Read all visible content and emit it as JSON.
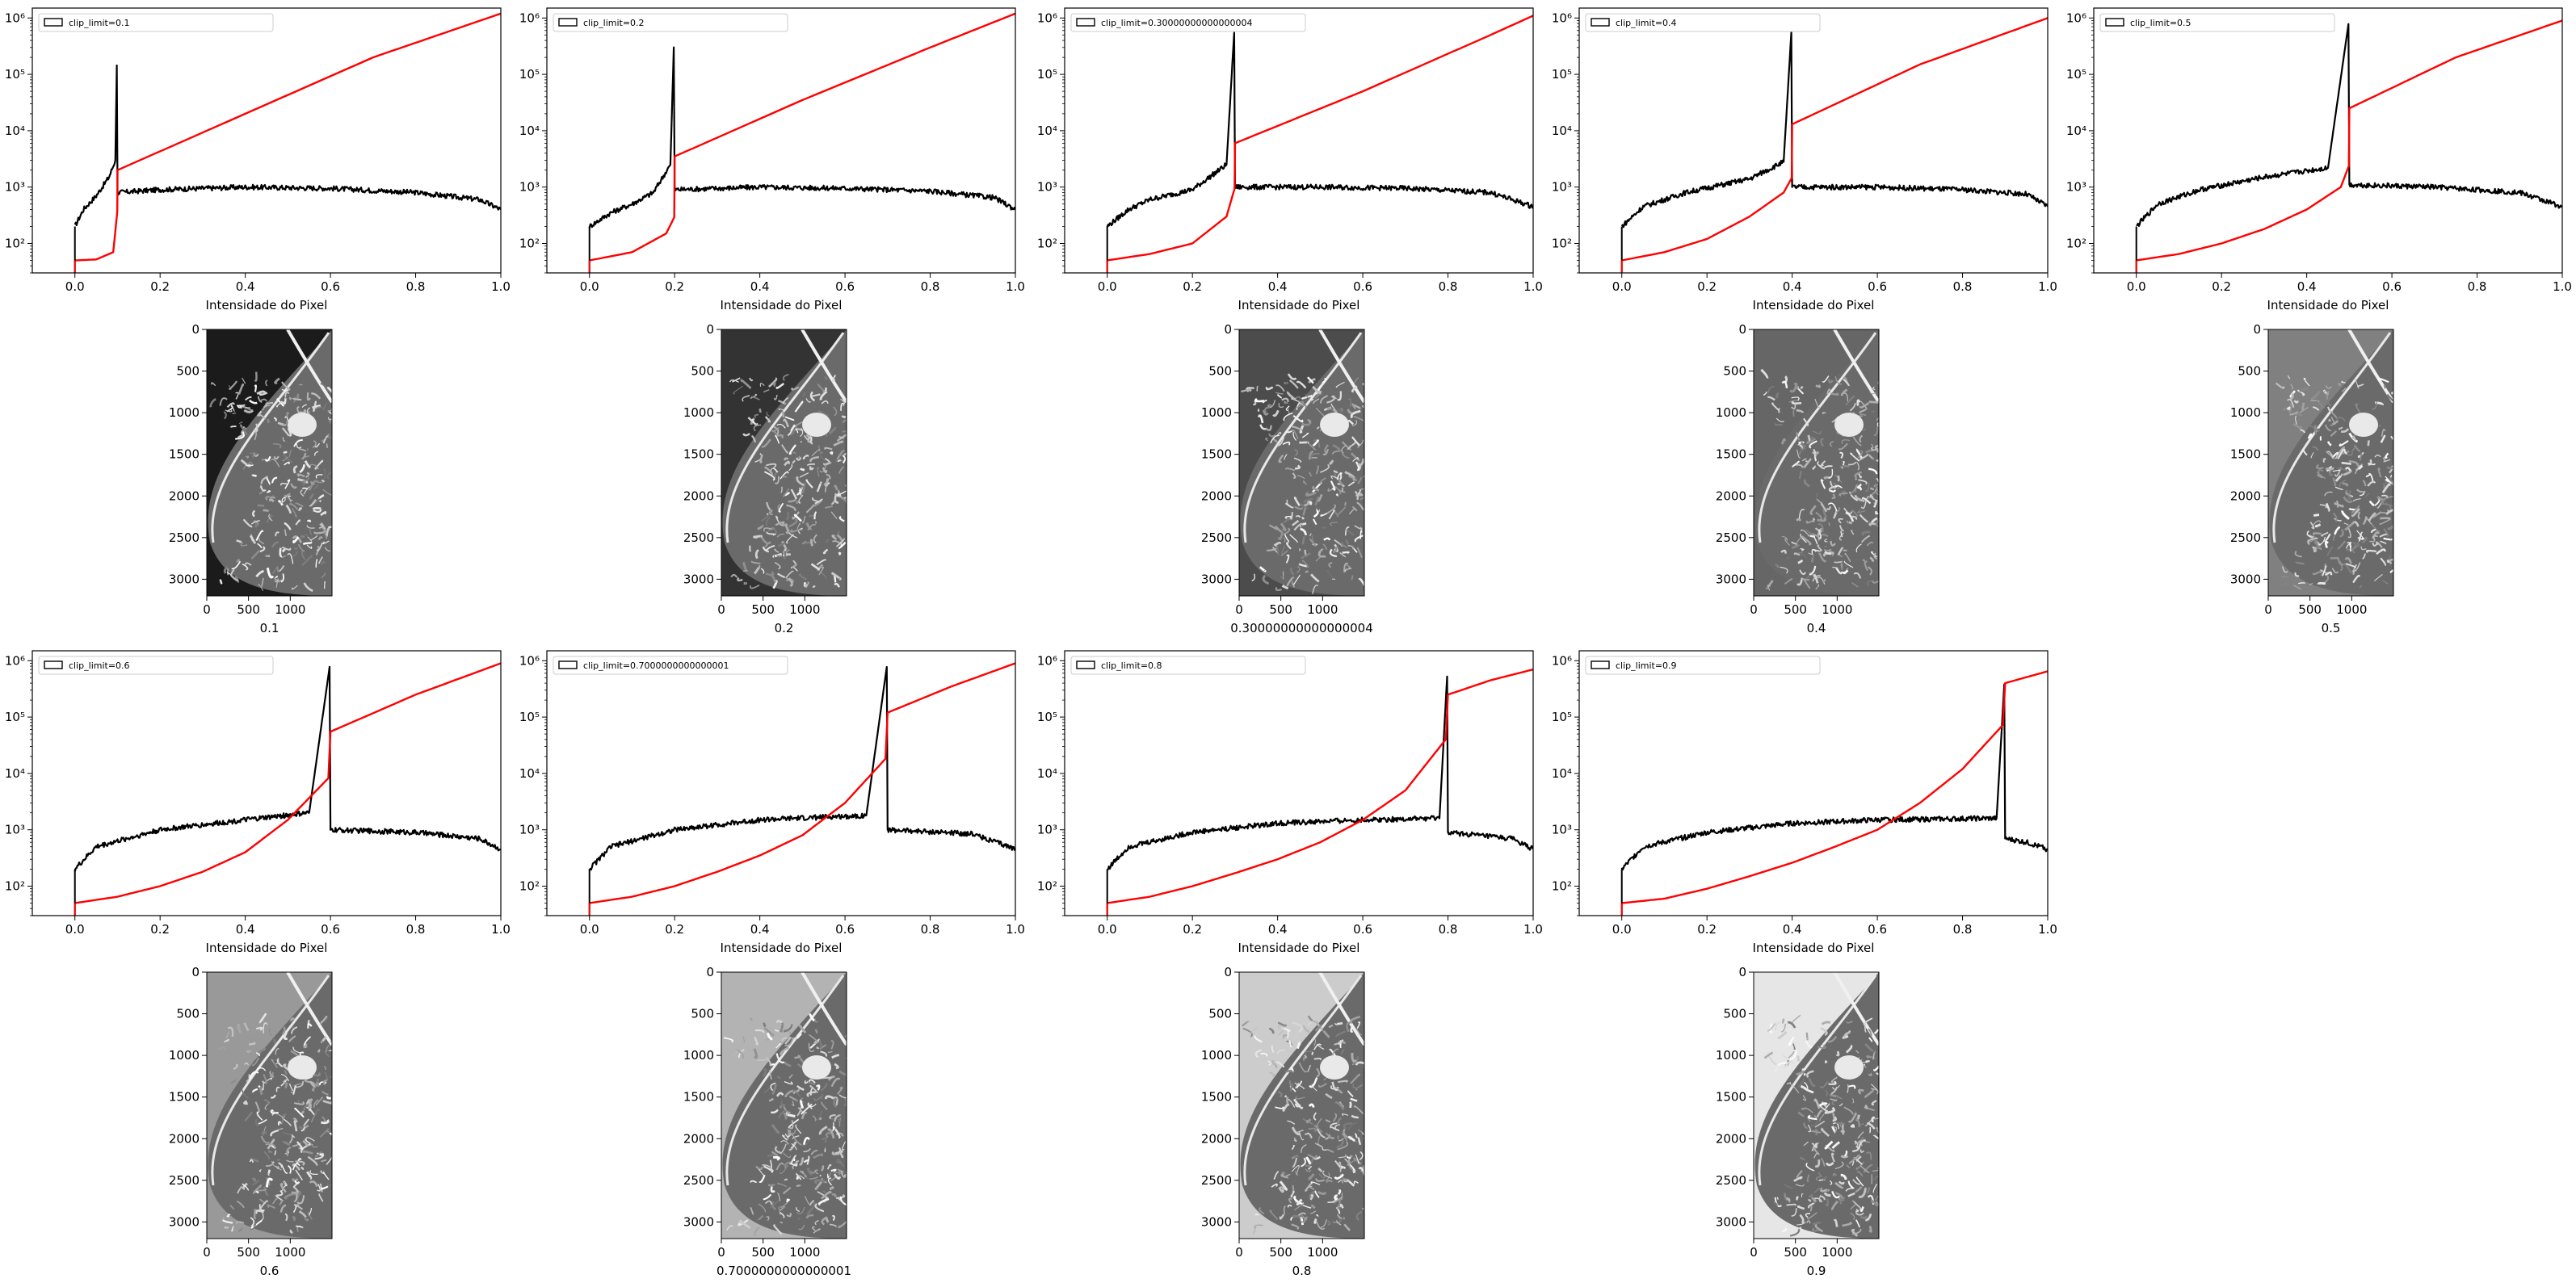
{
  "chart_data": [
    {
      "type": "line",
      "panel": 1,
      "legend": "clip_limit=0.1",
      "xlabel": "Intensidade do Pixel",
      "yscale": "log",
      "xlim": [
        -0.1,
        1.0
      ],
      "ylim": [
        30,
        1500000
      ],
      "xticks": [
        "0.0",
        "0.2",
        "0.4",
        "0.6",
        "0.8",
        "1.0"
      ],
      "yticks": [
        "10²",
        "10³",
        "10⁴",
        "10⁵",
        "10⁶"
      ],
      "clip": 0.1,
      "series": [
        {
          "color": "#000000",
          "x": [
            0,
            0.02,
            0.05,
            0.08,
            0.095,
            0.1,
            0.1,
            0.2,
            0.4,
            0.6,
            0.8,
            0.95,
            1.0
          ],
          "y": [
            200,
            400,
            700,
            1500,
            3000,
            1000000,
            800,
            900,
            1000,
            950,
            800,
            600,
            400
          ]
        },
        {
          "color": "#ff0000",
          "x": [
            0,
            0.05,
            0.09,
            0.1,
            0.1,
            0.4,
            0.7,
            1.0
          ],
          "y": [
            50,
            52,
            70,
            400,
            2000,
            20000,
            200000,
            1200000
          ]
        }
      ]
    },
    {
      "type": "line",
      "panel": 2,
      "legend": "clip_limit=0.2",
      "xlabel": "Intensidade do Pixel",
      "yscale": "log",
      "xlim": [
        -0.1,
        1.0
      ],
      "ylim": [
        30,
        1500000
      ],
      "xticks": [
        "0.0",
        "0.2",
        "0.4",
        "0.6",
        "0.8",
        "1.0"
      ],
      "yticks": [
        "10²",
        "10³",
        "10⁴",
        "10⁵",
        "10⁶"
      ],
      "clip": 0.2,
      "series": [
        {
          "color": "#000000",
          "x": [
            0,
            0.05,
            0.1,
            0.15,
            0.19,
            0.2,
            0.2,
            0.4,
            0.6,
            0.8,
            0.95,
            1.0
          ],
          "y": [
            200,
            350,
            500,
            800,
            2500,
            1000000,
            900,
            1000,
            950,
            850,
            650,
            400
          ]
        },
        {
          "color": "#ff0000",
          "x": [
            0,
            0.1,
            0.18,
            0.2,
            0.2,
            0.5,
            0.8,
            1.0
          ],
          "y": [
            50,
            70,
            150,
            300,
            3500,
            35000,
            300000,
            1200000
          ]
        }
      ]
    },
    {
      "type": "line",
      "panel": 3,
      "legend": "clip_limit=0.30000000000000004",
      "xlabel": "Intensidade do Pixel",
      "yscale": "log",
      "xlim": [
        -0.1,
        1.0
      ],
      "ylim": [
        30,
        1500000
      ],
      "xticks": [
        "0.0",
        "0.2",
        "0.4",
        "0.6",
        "0.8",
        "1.0"
      ],
      "yticks": [
        "10²",
        "10³",
        "10⁴",
        "10⁵",
        "10⁶"
      ],
      "clip": 0.30000000000000004,
      "series": [
        {
          "color": "#000000",
          "x": [
            0,
            0.05,
            0.1,
            0.2,
            0.28,
            0.3,
            0.3,
            0.5,
            0.7,
            0.9,
            1.0
          ],
          "y": [
            200,
            400,
            600,
            900,
            2500,
            1000000,
            1000,
            1000,
            950,
            800,
            450
          ]
        },
        {
          "color": "#ff0000",
          "x": [
            0,
            0.1,
            0.2,
            0.28,
            0.3,
            0.3,
            0.6,
            0.9,
            1.0
          ],
          "y": [
            50,
            65,
            100,
            300,
            1000,
            6000,
            50000,
            500000,
            1100000
          ]
        }
      ]
    },
    {
      "type": "line",
      "panel": 4,
      "legend": "clip_limit=0.4",
      "xlabel": "Intensidade do Pixel",
      "yscale": "log",
      "xlim": [
        -0.1,
        1.0
      ],
      "ylim": [
        30,
        1500000
      ],
      "xticks": [
        "0.0",
        "0.2",
        "0.4",
        "0.6",
        "0.8",
        "1.0"
      ],
      "yticks": [
        "10²",
        "10³",
        "10⁴",
        "10⁵",
        "10⁶"
      ],
      "clip": 0.4,
      "series": [
        {
          "color": "#000000",
          "x": [
            0,
            0.05,
            0.15,
            0.3,
            0.38,
            0.4,
            0.4,
            0.6,
            0.8,
            0.95,
            1.0
          ],
          "y": [
            200,
            450,
            800,
            1400,
            2800,
            1000000,
            1000,
            1000,
            900,
            750,
            450
          ]
        },
        {
          "color": "#ff0000",
          "x": [
            0,
            0.1,
            0.2,
            0.3,
            0.38,
            0.4,
            0.4,
            0.7,
            1.0
          ],
          "y": [
            50,
            70,
            120,
            300,
            800,
            1500,
            13000,
            150000,
            1000000
          ]
        }
      ]
    },
    {
      "type": "line",
      "panel": 5,
      "legend": "clip_limit=0.5",
      "xlabel": "Intensidade do Pixel",
      "yscale": "log",
      "xlim": [
        -0.1,
        1.0
      ],
      "ylim": [
        30,
        1500000
      ],
      "xticks": [
        "0.0",
        "0.2",
        "0.4",
        "0.6",
        "0.8",
        "1.0"
      ],
      "yticks": [
        "10²",
        "10³",
        "10⁴",
        "10⁵",
        "10⁶"
      ],
      "clip": 0.5,
      "series": [
        {
          "color": "#000000",
          "x": [
            0,
            0.05,
            0.15,
            0.3,
            0.45,
            0.5,
            0.5,
            0.7,
            0.9,
            1.0
          ],
          "y": [
            200,
            500,
            900,
            1500,
            2200,
            1000000,
            1100,
            1000,
            800,
            450
          ]
        },
        {
          "color": "#ff0000",
          "x": [
            0,
            0.1,
            0.2,
            0.3,
            0.4,
            0.48,
            0.5,
            0.5,
            0.75,
            1.0
          ],
          "y": [
            50,
            65,
            100,
            180,
            400,
            1000,
            2500,
            25000,
            200000,
            900000
          ]
        }
      ]
    },
    {
      "type": "line",
      "panel": 6,
      "legend": "clip_limit=0.6",
      "xlabel": "Intensidade do Pixel",
      "yscale": "log",
      "xlim": [
        -0.1,
        1.0
      ],
      "ylim": [
        30,
        1500000
      ],
      "xticks": [
        "0.0",
        "0.2",
        "0.4",
        "0.6",
        "0.8",
        "1.0"
      ],
      "yticks": [
        "10²",
        "10³",
        "10⁴",
        "10⁵",
        "10⁶"
      ],
      "clip": 0.6,
      "series": [
        {
          "color": "#000000",
          "x": [
            0,
            0.05,
            0.2,
            0.4,
            0.55,
            0.6,
            0.6,
            0.8,
            0.95,
            1.0
          ],
          "y": [
            200,
            500,
            1000,
            1500,
            2000,
            1000000,
            1000,
            900,
            700,
            450
          ]
        },
        {
          "color": "#ff0000",
          "x": [
            0,
            0.1,
            0.2,
            0.3,
            0.4,
            0.5,
            0.6,
            0.6,
            0.8,
            1.0
          ],
          "y": [
            50,
            65,
            100,
            180,
            400,
            1500,
            9000,
            55000,
            250000,
            900000
          ]
        }
      ]
    },
    {
      "type": "line",
      "panel": 7,
      "legend": "clip_limit=0.7000000000000001",
      "xlabel": "Intensidade do Pixel",
      "yscale": "log",
      "xlim": [
        -0.1,
        1.0
      ],
      "ylim": [
        30,
        1500000
      ],
      "xticks": [
        "0.0",
        "0.2",
        "0.4",
        "0.6",
        "0.8",
        "1.0"
      ],
      "yticks": [
        "10²",
        "10³",
        "10⁴",
        "10⁵",
        "10⁶"
      ],
      "clip": 0.7000000000000001,
      "series": [
        {
          "color": "#000000",
          "x": [
            0,
            0.05,
            0.2,
            0.4,
            0.65,
            0.7,
            0.7,
            0.9,
            1.0
          ],
          "y": [
            200,
            500,
            1000,
            1500,
            1800,
            1000000,
            1000,
            850,
            450
          ]
        },
        {
          "color": "#ff0000",
          "x": [
            0,
            0.1,
            0.2,
            0.3,
            0.4,
            0.5,
            0.6,
            0.7,
            0.7,
            0.85,
            1.0
          ],
          "y": [
            50,
            65,
            100,
            180,
            350,
            800,
            3000,
            20000,
            120000,
            350000,
            900000
          ]
        }
      ]
    },
    {
      "type": "line",
      "panel": 8,
      "legend": "clip_limit=0.8",
      "xlabel": "Intensidade do Pixel",
      "yscale": "log",
      "xlim": [
        -0.1,
        1.0
      ],
      "ylim": [
        30,
        1500000
      ],
      "xticks": [
        "0.0",
        "0.2",
        "0.4",
        "0.6",
        "0.8",
        "1.0"
      ],
      "yticks": [
        "10²",
        "10³",
        "10⁴",
        "10⁵",
        "10⁶"
      ],
      "clip": 0.8,
      "series": [
        {
          "color": "#000000",
          "x": [
            0,
            0.05,
            0.2,
            0.4,
            0.6,
            0.78,
            0.8,
            0.8,
            0.95,
            1.0
          ],
          "y": [
            200,
            500,
            900,
            1300,
            1500,
            1600,
            1000000,
            900,
            700,
            450
          ]
        },
        {
          "color": "#ff0000",
          "x": [
            0,
            0.1,
            0.2,
            0.3,
            0.4,
            0.5,
            0.6,
            0.7,
            0.8,
            0.8,
            0.9,
            1.0
          ],
          "y": [
            50,
            65,
            100,
            170,
            300,
            600,
            1500,
            5000,
            45000,
            250000,
            450000,
            700000
          ]
        }
      ]
    },
    {
      "type": "line",
      "panel": 9,
      "legend": "clip_limit=0.9",
      "xlabel": "Intensidade do Pixel",
      "yscale": "log",
      "xlim": [
        -0.1,
        1.0
      ],
      "ylim": [
        30,
        1500000
      ],
      "xticks": [
        "0.0",
        "0.2",
        "0.4",
        "0.6",
        "0.8",
        "1.0"
      ],
      "yticks": [
        "10²",
        "10³",
        "10⁴",
        "10⁵",
        "10⁶"
      ],
      "clip": 0.9,
      "series": [
        {
          "color": "#000000",
          "x": [
            0,
            0.05,
            0.2,
            0.4,
            0.6,
            0.88,
            0.9,
            0.9,
            0.95,
            1.0
          ],
          "y": [
            200,
            500,
            900,
            1300,
            1500,
            1600,
            700000,
            700,
            600,
            450
          ]
        },
        {
          "color": "#ff0000",
          "x": [
            0,
            0.1,
            0.2,
            0.3,
            0.4,
            0.5,
            0.6,
            0.7,
            0.8,
            0.9,
            0.9,
            1.0
          ],
          "y": [
            50,
            60,
            90,
            150,
            260,
            500,
            1000,
            3000,
            12000,
            80000,
            400000,
            650000
          ]
        }
      ]
    }
  ],
  "images": [
    {
      "caption": "0.1",
      "yticks": [
        "0",
        "500",
        "1000",
        "1500",
        "2000",
        "2500",
        "3000"
      ],
      "xticks": [
        "0",
        "500",
        "1000"
      ],
      "bg": "#1b1b1b"
    },
    {
      "caption": "0.2",
      "yticks": [
        "0",
        "500",
        "1000",
        "1500",
        "2000",
        "2500",
        "3000"
      ],
      "xticks": [
        "0",
        "500",
        "1000"
      ],
      "bg": "#333333"
    },
    {
      "caption": "0.30000000000000004",
      "yticks": [
        "0",
        "500",
        "1000",
        "1500",
        "2000",
        "2500",
        "3000"
      ],
      "xticks": [
        "0",
        "500",
        "1000"
      ],
      "bg": "#4c4c4c"
    },
    {
      "caption": "0.4",
      "yticks": [
        "0",
        "500",
        "1000",
        "1500",
        "2000",
        "2500",
        "3000"
      ],
      "xticks": [
        "0",
        "500",
        "1000"
      ],
      "bg": "#666666"
    },
    {
      "caption": "0.5",
      "yticks": [
        "0",
        "500",
        "1000",
        "1500",
        "2000",
        "2500",
        "3000"
      ],
      "xticks": [
        "0",
        "500",
        "1000"
      ],
      "bg": "#808080"
    },
    {
      "caption": "0.6",
      "yticks": [
        "0",
        "500",
        "1000",
        "1500",
        "2000",
        "2500",
        "3000"
      ],
      "xticks": [
        "0",
        "500",
        "1000"
      ],
      "bg": "#999999"
    },
    {
      "caption": "0.7000000000000001",
      "yticks": [
        "0",
        "500",
        "1000",
        "1500",
        "2000",
        "2500",
        "3000"
      ],
      "xticks": [
        "0",
        "500",
        "1000"
      ],
      "bg": "#b3b3b3"
    },
    {
      "caption": "0.8",
      "yticks": [
        "0",
        "500",
        "1000",
        "1500",
        "2000",
        "2500",
        "3000"
      ],
      "xticks": [
        "0",
        "500",
        "1000"
      ],
      "bg": "#cccccc"
    },
    {
      "caption": "0.9",
      "yticks": [
        "0",
        "500",
        "1000",
        "1500",
        "2000",
        "2500",
        "3000"
      ],
      "xticks": [
        "0",
        "500",
        "1000"
      ],
      "bg": "#e6e6e6"
    }
  ]
}
